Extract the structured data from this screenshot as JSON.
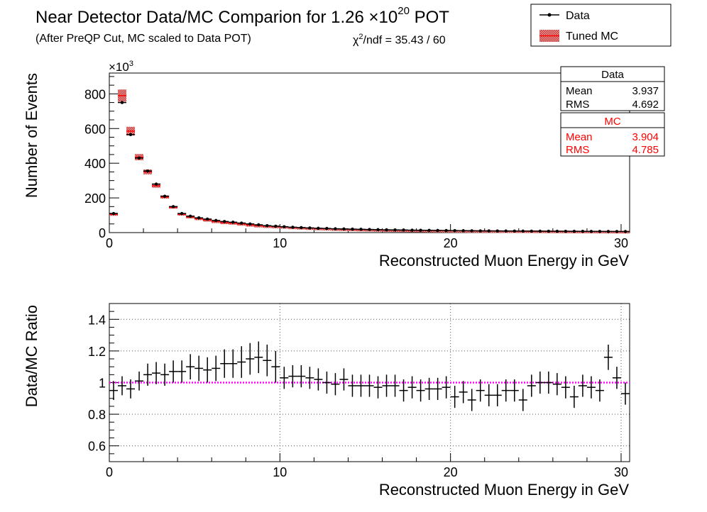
{
  "header": {
    "title_main": "Near Detector Data/MC Comparion for 1.26 ×10",
    "title_exp": "20",
    "title_tail": " POT",
    "subtitle": "(After PreQP Cut, MC scaled to Data POT)",
    "chi2_pre": "χ",
    "chi2_exp": "2",
    "chi2_post": "/ndf = 35.43 / 60"
  },
  "legend": {
    "data_label": "Data",
    "mc_label": "Tuned MC"
  },
  "stats": {
    "data": {
      "title": "Data",
      "mean_label": "Mean",
      "mean": "3.937",
      "rms_label": "RMS",
      "rms": "4.692"
    },
    "mc": {
      "title": "MC",
      "mean_label": "Mean",
      "mean": "3.904",
      "rms_label": "RMS",
      "rms": "4.785"
    }
  },
  "colors": {
    "data": "#000000",
    "mc_fill": "#c83232",
    "mc_marker": "#ff0000",
    "stats_mc_text": "#ff0000",
    "reference_line": "#ff00ff"
  },
  "chart_data": [
    {
      "type": "bar",
      "name": "distribution",
      "xlabel": "Reconstructed Muon Energy in GeV",
      "ylabel": "Number of Events",
      "y_multiplier": "×10",
      "y_multiplier_exp": "3",
      "xlim": [
        0,
        30.5
      ],
      "ylim": [
        0,
        920
      ],
      "xticks": [
        0,
        10,
        20,
        30
      ],
      "yticks": [
        0,
        200,
        400,
        600,
        800
      ],
      "grid": false,
      "legend_position": "top-right",
      "bin_width": 0.5,
      "x": [
        0.25,
        0.75,
        1.25,
        1.75,
        2.25,
        2.75,
        3.25,
        3.75,
        4.25,
        4.75,
        5.25,
        5.75,
        6.25,
        6.75,
        7.25,
        7.75,
        8.25,
        8.75,
        9.25,
        9.75,
        10.25,
        10.75,
        11.25,
        11.75,
        12.25,
        12.75,
        13.25,
        13.75,
        14.25,
        14.75,
        15.25,
        15.75,
        16.25,
        16.75,
        17.25,
        17.75,
        18.25,
        18.75,
        19.25,
        19.75,
        20.25,
        20.75,
        21.25,
        21.75,
        22.25,
        22.75,
        23.25,
        23.75,
        24.25,
        24.75,
        25.25,
        25.75,
        26.25,
        26.75,
        27.25,
        27.75,
        28.25,
        28.75,
        29.25,
        29.75,
        30.25
      ],
      "series": [
        {
          "name": "Data",
          "values": [
            110,
            750,
            565,
            430,
            355,
            280,
            210,
            150,
            110,
            95,
            85,
            78,
            70,
            64,
            60,
            55,
            50,
            45,
            40,
            37,
            34,
            31,
            29,
            27,
            25,
            24,
            22,
            21,
            20,
            19,
            18,
            17,
            16,
            15.5,
            15,
            14,
            13.5,
            13,
            12.5,
            12,
            11.5,
            11,
            10.5,
            10,
            9.8,
            9.5,
            9.2,
            9,
            8.7,
            8.5,
            8.2,
            8,
            7.8,
            7.6,
            7.4,
            7.2,
            7,
            6.8,
            6.6,
            6.4,
            6.2
          ]
        },
        {
          "name": "Tuned MC",
          "values": [
            105,
            790,
            585,
            435,
            350,
            270,
            205,
            145,
            105,
            90,
            80,
            72,
            64,
            58,
            55,
            50,
            44,
            40,
            37,
            35,
            33,
            30,
            28,
            26,
            24,
            23,
            21,
            20,
            19,
            18,
            17,
            16,
            15,
            14.5,
            14,
            13.5,
            13,
            12.5,
            12,
            11.5,
            11,
            10.8,
            10.5,
            10.2,
            10,
            9.8,
            9.5,
            9.2,
            9,
            8.8,
            8.5,
            8.2,
            8,
            7.8,
            7.6,
            7.4,
            7.2,
            7,
            6.8,
            6.6,
            6.4
          ],
          "errors": [
            8,
            35,
            25,
            18,
            14,
            11,
            9,
            7,
            5,
            4,
            4,
            3.5,
            3,
            3,
            3,
            2.5,
            2.5,
            2,
            2,
            2,
            2,
            1.8,
            1.8,
            1.6,
            1.6,
            1.5,
            1.5,
            1.4,
            1.4,
            1.3,
            1.3,
            1.2,
            1.2,
            1.2,
            1.1,
            1.1,
            1.1,
            1,
            1,
            1,
            1,
            1,
            0.9,
            0.9,
            0.9,
            0.9,
            0.9,
            0.8,
            0.8,
            0.8,
            0.8,
            0.8,
            0.8,
            0.7,
            0.7,
            0.7,
            0.7,
            0.7,
            0.7,
            0.7,
            0.7
          ]
        }
      ]
    },
    {
      "type": "scatter",
      "name": "ratio",
      "xlabel": "Reconstructed Muon Energy in GeV",
      "ylabel": "Data/MC Ratio",
      "xlim": [
        0,
        30.5
      ],
      "ylim": [
        0.5,
        1.5
      ],
      "xticks": [
        0,
        10,
        20,
        30
      ],
      "yticks": [
        0.6,
        0.8,
        1,
        1.2,
        1.4
      ],
      "grid": true,
      "reference_y": 1,
      "bin_width": 0.5,
      "x": [
        0.25,
        0.75,
        1.25,
        1.75,
        2.25,
        2.75,
        3.25,
        3.75,
        4.25,
        4.75,
        5.25,
        5.75,
        6.25,
        6.75,
        7.25,
        7.75,
        8.25,
        8.75,
        9.25,
        9.75,
        10.25,
        10.75,
        11.25,
        11.75,
        12.25,
        12.75,
        13.25,
        13.75,
        14.25,
        14.75,
        15.25,
        15.75,
        16.25,
        16.75,
        17.25,
        17.75,
        18.25,
        18.75,
        19.25,
        19.75,
        20.25,
        20.75,
        21.25,
        21.75,
        22.25,
        22.75,
        23.25,
        23.75,
        24.25,
        24.75,
        25.25,
        25.75,
        26.25,
        26.75,
        27.25,
        27.75,
        28.25,
        28.75,
        29.25,
        29.75,
        30.25
      ],
      "y": [
        0.95,
        0.98,
        0.96,
        1.01,
        1.05,
        1.06,
        1.05,
        1.07,
        1.07,
        1.1,
        1.09,
        1.08,
        1.09,
        1.12,
        1.12,
        1.13,
        1.15,
        1.16,
        1.14,
        1.1,
        1.03,
        1.04,
        1.04,
        1.03,
        1.02,
        1.0,
        0.99,
        1.02,
        0.98,
        0.98,
        0.98,
        0.97,
        0.98,
        0.98,
        0.95,
        0.97,
        0.95,
        0.96,
        0.96,
        0.97,
        0.91,
        0.94,
        0.89,
        0.95,
        0.92,
        0.92,
        0.95,
        0.95,
        0.89,
        0.98,
        1.0,
        1.0,
        0.99,
        0.97,
        0.91,
        0.98,
        0.97,
        0.95,
        1.16,
        1.03,
        0.93
      ],
      "errors": [
        0.06,
        0.06,
        0.06,
        0.06,
        0.07,
        0.07,
        0.07,
        0.07,
        0.07,
        0.08,
        0.08,
        0.08,
        0.08,
        0.09,
        0.09,
        0.1,
        0.1,
        0.1,
        0.1,
        0.1,
        0.07,
        0.07,
        0.07,
        0.07,
        0.07,
        0.07,
        0.07,
        0.07,
        0.07,
        0.07,
        0.07,
        0.07,
        0.07,
        0.07,
        0.07,
        0.07,
        0.07,
        0.07,
        0.07,
        0.07,
        0.07,
        0.07,
        0.07,
        0.07,
        0.07,
        0.07,
        0.07,
        0.07,
        0.07,
        0.07,
        0.07,
        0.07,
        0.07,
        0.07,
        0.07,
        0.07,
        0.07,
        0.07,
        0.08,
        0.07,
        0.07
      ]
    }
  ]
}
